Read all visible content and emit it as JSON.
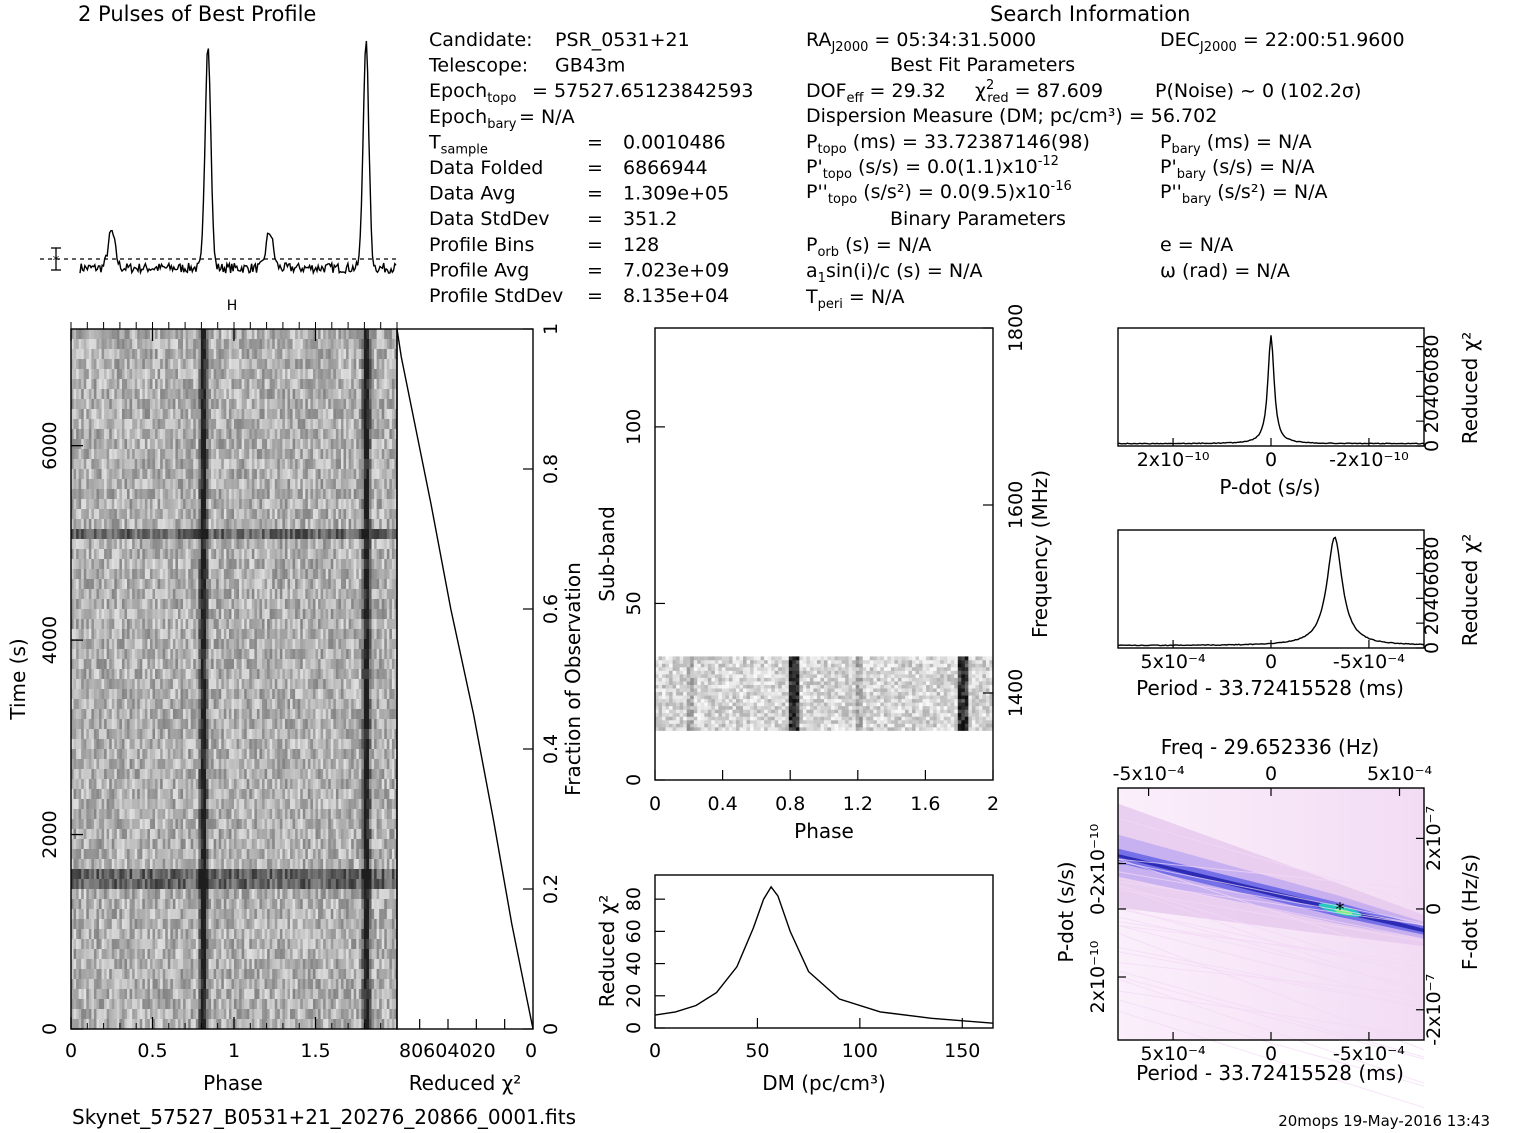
{
  "profile_panel": {
    "title": "2 Pulses of Best Profile"
  },
  "search_info": {
    "header": "Search Information",
    "best_fit_header": "Best Fit Parameters",
    "binary_header": "Binary Parameters",
    "left_column": [
      {
        "label": "Candidate:",
        "value": "PSR_0531+21"
      },
      {
        "label": "Telescope:",
        "value": "GB43m"
      },
      {
        "label": "Epoch_topo",
        "value": "= 57527.65123842593"
      },
      {
        "label": "Epoch_bary",
        "value": "= N/A"
      },
      {
        "label": "T_sample",
        "value": "0.0010486"
      },
      {
        "label": "Data Folded",
        "value": "6866944"
      },
      {
        "label": "Data Avg",
        "value": "1.309e+05"
      },
      {
        "label": "Data StdDev",
        "value": "351.2"
      },
      {
        "label": "Profile Bins",
        "value": "128"
      },
      {
        "label": "Profile Avg",
        "value": "7.023e+09"
      },
      {
        "label": "Profile StdDev",
        "value": "8.135e+04"
      }
    ],
    "ra": "= 05:34:31.5000",
    "dec": "= 22:00:51.9600",
    "dof_line": "= 29.32",
    "chi2_line": "= 87.609",
    "noise_line": "P(Noise) ~ 0   (102.2σ)",
    "dm_line": "Dispersion Measure (DM; pc/cm³) = 56.702",
    "p_topo": "(ms) =  33.72387146(98)",
    "p_bary": "(ms) = N/A",
    "pd_topo": "(s/s) = 0.0(1.1)x10",
    "pd_topo_exp": "-12",
    "pd_bary": "(s/s) = N/A",
    "pdd_topo": "(s/s²) = 0.0(9.5)x10",
    "pdd_topo_exp": "-16",
    "pdd_bary": "(s/s²) = N/A",
    "p_orb": "(s) = N/A",
    "e": "e = N/A",
    "a1": "sin(i)/c (s) = N/A",
    "omega": "ω (rad) = N/A",
    "t_peri": "= N/A"
  },
  "labels": {
    "time": "Time (s)",
    "phase": "Phase",
    "reduced_chi2": "Reduced χ²",
    "fraction": "Fraction of Observation",
    "subband": "Sub-band",
    "frequency": "Frequency (MHz)",
    "dm": "DM (pc/cm³)",
    "pdot": "P-dot (s/s)",
    "period": "Period - 33.72415528 (ms)",
    "freq_top": "Freq - 29.652336 (Hz)",
    "fdot": "F-dot (Hz/s)",
    "filename": "Skynet_57527_B0531+21_20276_20866_0001.fits",
    "footer": "20mops 19-May-2016 13:43"
  },
  "chart_data": [
    {
      "type": "line",
      "name": "profile",
      "x": [
        0,
        0.2,
        0.81,
        1.2,
        1.81,
        2.0
      ],
      "peaks_at_phase": [
        0.2,
        0.81,
        1.2,
        1.81
      ],
      "peak_heights": [
        0.16,
        1.0,
        0.16,
        1.0
      ],
      "title": "2 Pulses of Best Profile"
    },
    {
      "type": "heatmap",
      "name": "time-phase",
      "xlabel": "Phase",
      "ylabel": "Time (s)",
      "xlim": [
        0,
        2
      ],
      "ylim": [
        0,
        7200
      ],
      "xticks": [
        "0",
        "0.5",
        "1",
        "1.5"
      ],
      "yticks": [
        "0",
        "2000",
        "4000",
        "6000"
      ],
      "pulse_phases": [
        0.81,
        1.81
      ],
      "bright_rows_s": [
        1540,
        5050
      ]
    },
    {
      "type": "line",
      "name": "reduced chi2 vs fraction",
      "xlabel": "Reduced χ²",
      "ylabel": "Fraction of Observation",
      "xlim": [
        96,
        0
      ],
      "ylim": [
        0,
        1
      ],
      "xticks": [
        "80",
        "60",
        "40",
        "20",
        "0"
      ],
      "yticks": [
        "0",
        "0.2",
        "0.4",
        "0.6",
        "0.8",
        "1"
      ],
      "points": [
        [
          0,
          0
        ],
        [
          5,
          0.05
        ],
        [
          15,
          0.15
        ],
        [
          28,
          0.3
        ],
        [
          42,
          0.45
        ],
        [
          58,
          0.6
        ],
        [
          72,
          0.75
        ],
        [
          85,
          0.88
        ],
        [
          93,
          0.96
        ],
        [
          96,
          1.0
        ]
      ]
    },
    {
      "type": "heatmap",
      "name": "subband-phase",
      "xlabel": "Phase",
      "ylabel": "Sub-band",
      "y2label": "Frequency (MHz)",
      "xlim": [
        0,
        2
      ],
      "ylim": [
        0,
        128
      ],
      "xticks": [
        "0",
        "0.4",
        "0.8",
        "1.2",
        "1.6",
        "2"
      ],
      "yticks": [
        "0",
        "50",
        "100"
      ],
      "y2ticks": [
        "1400",
        "1600",
        "1800"
      ],
      "filled_subbands": [
        14,
        35
      ],
      "pulse_phases": [
        0.82,
        1.82
      ]
    },
    {
      "type": "line",
      "name": "dm curve",
      "xlabel": "DM (pc/cm³)",
      "ylabel": "Reduced χ²",
      "xlim": [
        0,
        165
      ],
      "ylim": [
        0,
        95
      ],
      "xticks": [
        "0",
        "50",
        "100",
        "150"
      ],
      "yticks": [
        "0",
        "20",
        "40",
        "60",
        "80"
      ],
      "points": [
        [
          0,
          8
        ],
        [
          10,
          10
        ],
        [
          20,
          14
        ],
        [
          30,
          22
        ],
        [
          40,
          38
        ],
        [
          48,
          62
        ],
        [
          53,
          80
        ],
        [
          56.7,
          87.6
        ],
        [
          60,
          82
        ],
        [
          66,
          60
        ],
        [
          75,
          35
        ],
        [
          90,
          18
        ],
        [
          110,
          10
        ],
        [
          135,
          6
        ],
        [
          165,
          3
        ]
      ]
    },
    {
      "type": "line",
      "name": "pdot curve",
      "xlabel": "P-dot (s/s)",
      "ylabel": "Reduced χ²",
      "xticks": [
        "2x10⁻¹⁰",
        "0",
        "-2x10⁻¹⁰"
      ],
      "yticks": [
        "0",
        "20",
        "40",
        "60",
        "80"
      ],
      "peak_x": 0,
      "peak_y": 87.6,
      "baseline": 2
    },
    {
      "type": "line",
      "name": "period curve",
      "xlabel": "Period - 33.72415528 (ms)",
      "ylabel": "Reduced χ²",
      "xticks": [
        "5x10⁻⁴",
        "0",
        "-5x10⁻⁴"
      ],
      "yticks": [
        "0",
        "20",
        "40",
        "60",
        "80"
      ],
      "peak_x": -0.00028,
      "peak_y": 87.6,
      "baseline": 2
    },
    {
      "type": "heatmap",
      "name": "period-pdot plane",
      "xlabel": "Period - 33.72415528 (ms)",
      "ylabel": "P-dot (s/s)",
      "x2label": "Freq - 29.652336 (Hz)",
      "y2label": "F-dot (Hz/s)",
      "xticks": [
        "5x10⁻⁴",
        "0",
        "-5x10⁻⁴"
      ],
      "yticks": [
        "-2x10⁻¹⁰",
        "0",
        "2x10⁻¹⁰"
      ],
      "x2ticks": [
        "-5x10⁻⁴",
        "0",
        "5x10⁻⁴"
      ],
      "y2ticks": [
        "2x10⁻⁷",
        "0",
        "-2x10⁻⁷"
      ],
      "best_fit": {
        "period_offset": -0.00028,
        "pdot": 0
      }
    }
  ]
}
